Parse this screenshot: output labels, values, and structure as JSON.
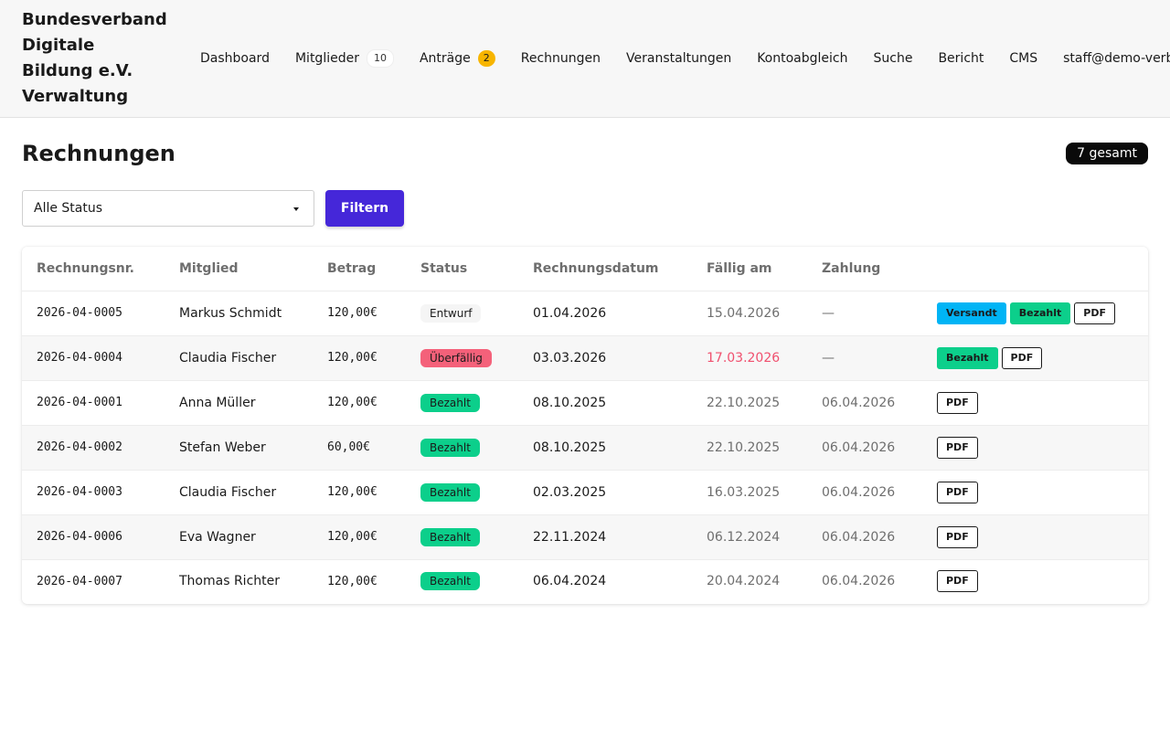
{
  "brand": {
    "line1": "Bundesverband",
    "line2": "Digitale",
    "line3": "Bildung e.V.",
    "line4": "Verwaltung"
  },
  "nav": {
    "dashboard": "Dashboard",
    "mitglieder": "Mitglieder",
    "mitglieder_count": "10",
    "antraege": "Anträge",
    "antraege_count": "2",
    "rechnungen": "Rechnungen",
    "veranstaltungen": "Veranstaltungen",
    "kontoabgleich": "Kontoabgleich",
    "suche": "Suche",
    "bericht": "Bericht",
    "cms": "CMS",
    "user": "staff@demo-verband.de"
  },
  "page": {
    "title": "Rechnungen",
    "count_label": "7 gesamt"
  },
  "filter": {
    "status_value": "Alle Status",
    "button_label": "Filtern"
  },
  "table": {
    "headers": [
      "Rechnungsnr.",
      "Mitglied",
      "Betrag",
      "Status",
      "Rechnungsdatum",
      "Fällig am",
      "Zahlung"
    ],
    "rows": [
      {
        "nr": "2026-04-0005",
        "member": "Markus Schmidt",
        "amount": "120,00€",
        "status": "Entwurf",
        "date": "01.04.2026",
        "due": "15.04.2026",
        "payment": "—",
        "btn_sent": "Versandt",
        "btn_paid": "Bezahlt",
        "btn_pdf": "PDF"
      },
      {
        "nr": "2026-04-0004",
        "member": "Claudia Fischer",
        "amount": "120,00€",
        "status": "Überfällig",
        "date": "03.03.2026",
        "due": "17.03.2026",
        "payment": "—",
        "btn_paid": "Bezahlt",
        "btn_pdf": "PDF"
      },
      {
        "nr": "2026-04-0001",
        "member": "Anna Müller",
        "amount": "120,00€",
        "status": "Bezahlt",
        "date": "08.10.2025",
        "due": "22.10.2025",
        "payment": "06.04.2026",
        "btn_pdf": "PDF"
      },
      {
        "nr": "2026-04-0002",
        "member": "Stefan Weber",
        "amount": "60,00€",
        "status": "Bezahlt",
        "date": "08.10.2025",
        "due": "22.10.2025",
        "payment": "06.04.2026",
        "btn_pdf": "PDF"
      },
      {
        "nr": "2026-04-0003",
        "member": "Claudia Fischer",
        "amount": "120,00€",
        "status": "Bezahlt",
        "date": "02.03.2025",
        "due": "16.03.2025",
        "payment": "06.04.2026",
        "btn_pdf": "PDF"
      },
      {
        "nr": "2026-04-0006",
        "member": "Eva Wagner",
        "amount": "120,00€",
        "status": "Bezahlt",
        "date": "22.11.2024",
        "due": "06.12.2024",
        "payment": "06.04.2026",
        "btn_pdf": "PDF"
      },
      {
        "nr": "2026-04-0007",
        "member": "Thomas Richter",
        "amount": "120,00€",
        "status": "Bezahlt",
        "date": "06.04.2024",
        "due": "20.04.2024",
        "payment": "06.04.2026",
        "btn_pdf": "PDF"
      }
    ]
  },
  "colors": {
    "accent": "#4527d9",
    "status_paid": "#0ccf8b",
    "status_overdue": "#f4617a",
    "status_sent": "#00b4f5",
    "badge_warn": "#f7b500"
  }
}
